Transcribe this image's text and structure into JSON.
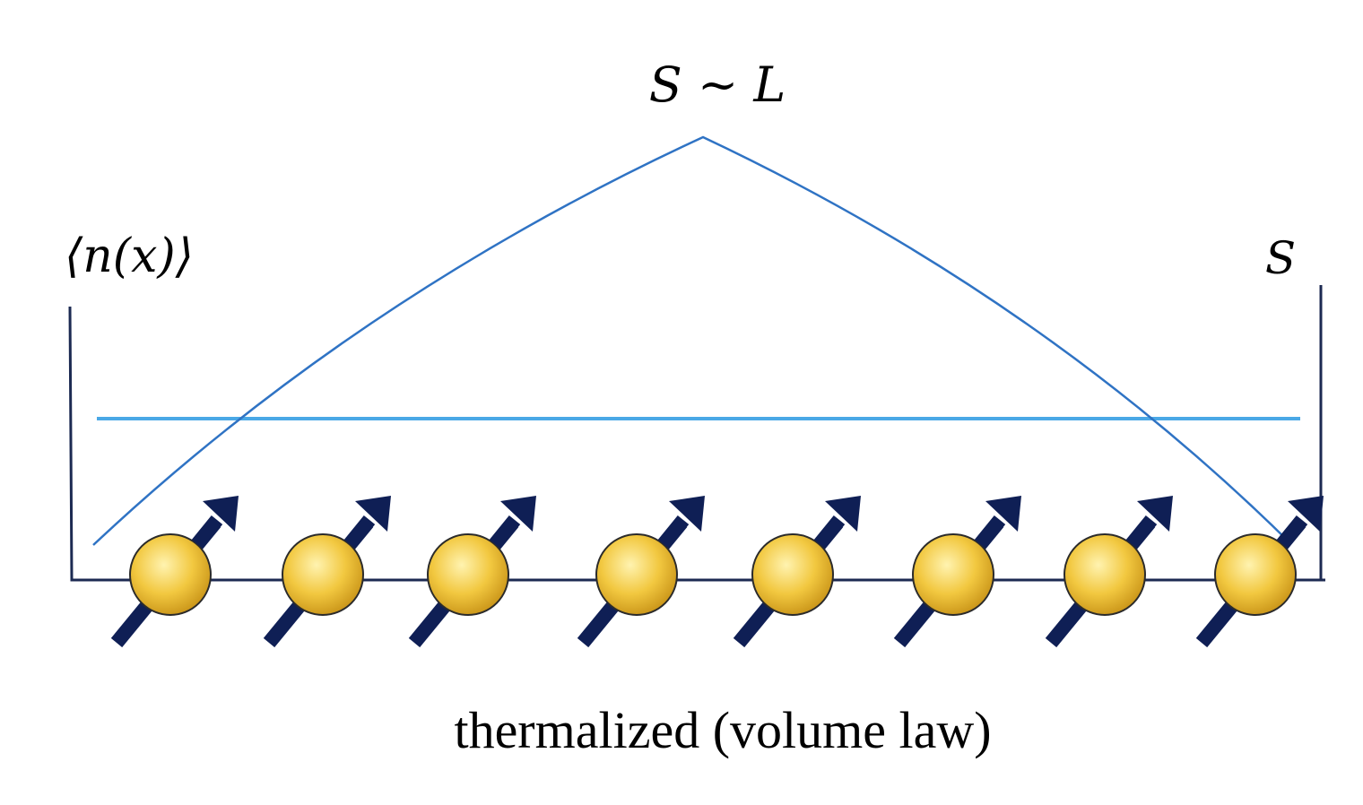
{
  "labels": {
    "peak": "S ~ L",
    "left_axis": "⟨n(x)⟩",
    "right_axis": "S",
    "caption": "thermalized (volume law)"
  },
  "spins": {
    "count": 8,
    "state": "up"
  },
  "colors": {
    "entropy_curve": "#2f73c4",
    "density_line": "#4aa8e6",
    "axes": "#1c2a52",
    "arrow": "#0f1f55",
    "ball_light": "#fff3b0",
    "ball_mid": "#f2c840",
    "ball_dark": "#c99418",
    "ball_outline": "#2b2b2b"
  },
  "icons": {
    "spin_site": "spin-up-ball-icon"
  }
}
